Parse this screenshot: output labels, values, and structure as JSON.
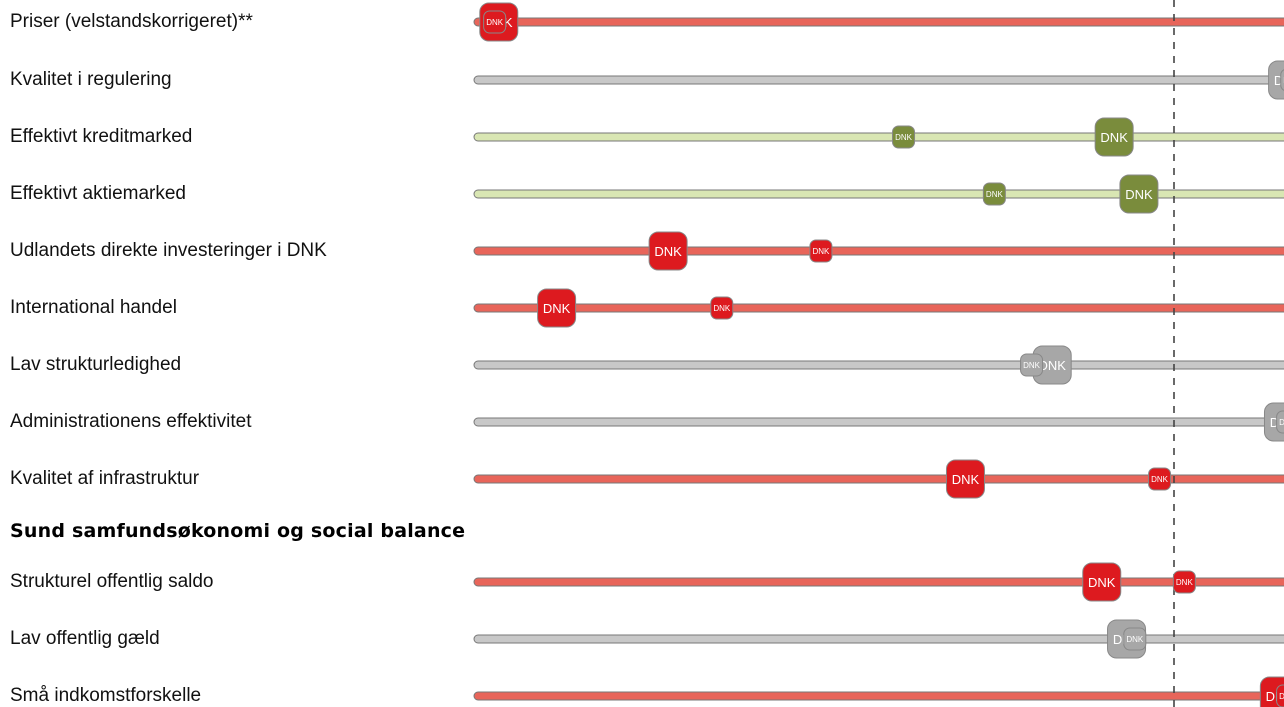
{
  "colors": {
    "red_track": "#e8655a",
    "red_marker": "#dd1a1f",
    "gray_track": "#c8c8c8",
    "gray_marker": "#a7a7a7",
    "green_track": "#d9e6b3",
    "green_marker": "#7a8c3c",
    "track_border": "#777777"
  },
  "chart_data": {
    "type": "scatter",
    "marker_label": "DNK",
    "reference_line": "dashed",
    "rows": [
      {
        "label": "Priser (velstandskorrigeret)**",
        "color": "red",
        "big": 0.03,
        "small": 0.025
      },
      {
        "label": "Kvalitet i regulering",
        "color": "gray",
        "big": 0.985,
        "small": 0.99
      },
      {
        "label": "Effektivt kreditmarked",
        "color": "green",
        "big": 0.775,
        "small": 0.52
      },
      {
        "label": "Effektivt aktiemarked",
        "color": "green",
        "big": 0.805,
        "small": 0.63
      },
      {
        "label": "Udlandets direkte investeringer i DNK",
        "color": "red",
        "big": 0.235,
        "small": 0.42
      },
      {
        "label": "International handel",
        "color": "red",
        "big": 0.1,
        "small": 0.3
      },
      {
        "label": "Lav strukturledighed",
        "color": "gray",
        "big": 0.7,
        "small": 0.675
      },
      {
        "label": "Administrationens effektivitet",
        "color": "gray",
        "big": 0.98,
        "small": 0.985
      },
      {
        "label": "Kvalitet af infrastruktur",
        "color": "red",
        "big": 0.595,
        "small": 0.83
      },
      {
        "label": "Strukturel offentlig saldo",
        "color": "red",
        "big": 0.76,
        "small": 0.86
      },
      {
        "label": "Lav offentlig gæld",
        "color": "gray",
        "big": 0.79,
        "small": 0.8
      },
      {
        "label": "Små indkomstforskelle",
        "color": "red",
        "big": 0.975,
        "small": 0.985
      }
    ],
    "section_heading": "Sund samfundsøkonomi og social balance"
  }
}
